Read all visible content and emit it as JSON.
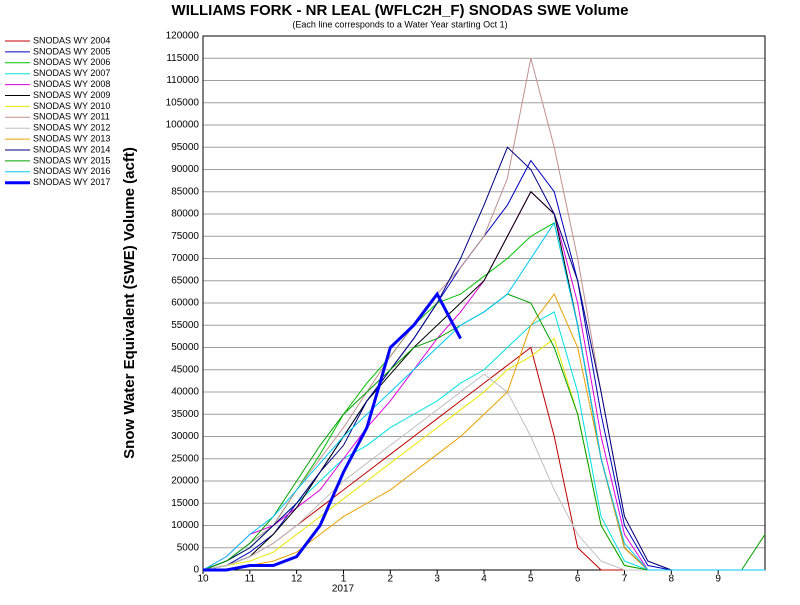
{
  "chart_data": {
    "type": "line",
    "title": "WILLIAMS FORK - NR LEAL (WFLC2H_F) SNODAS SWE Volume",
    "subtitle": "(Each line corresponds to a Water Year starting Oct 1)",
    "y_label": "Snow Water Equivalent (SWE) Volume (acft)",
    "year_label": "2017",
    "x": [
      0,
      0.5,
      1,
      1.5,
      2,
      2.5,
      3,
      3.5,
      4,
      4.5,
      5,
      5.5,
      6,
      6.5,
      7,
      7.5,
      8,
      8.5,
      9,
      9.5,
      10,
      10.5,
      11,
      11.5,
      12
    ],
    "xlim": [
      0,
      12
    ],
    "xticks": [
      {
        "value": 0,
        "label": "10"
      },
      {
        "value": 1,
        "label": "11"
      },
      {
        "value": 2,
        "label": "12"
      },
      {
        "value": 3,
        "label": "1"
      },
      {
        "value": 4,
        "label": "2"
      },
      {
        "value": 5,
        "label": "3"
      },
      {
        "value": 6,
        "label": "4"
      },
      {
        "value": 7,
        "label": "5"
      },
      {
        "value": 8,
        "label": "6"
      },
      {
        "value": 9,
        "label": "7"
      },
      {
        "value": 10,
        "label": "8"
      },
      {
        "value": 11,
        "label": "9"
      }
    ],
    "ylim": [
      0,
      120000
    ],
    "yticks": [
      0,
      5000,
      10000,
      15000,
      20000,
      25000,
      30000,
      35000,
      40000,
      45000,
      50000,
      55000,
      60000,
      65000,
      70000,
      75000,
      80000,
      85000,
      90000,
      95000,
      100000,
      105000,
      110000,
      115000,
      120000
    ],
    "grid": true,
    "series": [
      {
        "name": "SNODAS WY 2004",
        "color": "#c00000",
        "values": [
          0,
          1000,
          3000,
          6000,
          10000,
          14000,
          18000,
          22000,
          26000,
          30000,
          34000,
          38000,
          42000,
          46000,
          50000,
          30000,
          5000,
          0,
          0,
          0,
          0,
          0,
          0,
          0,
          0
        ]
      },
      {
        "name": "SNODAS WY 2005",
        "color": "#0000c0",
        "values": [
          0,
          1000,
          4000,
          8000,
          15000,
          22000,
          30000,
          38000,
          45000,
          52000,
          60000,
          68000,
          75000,
          82000,
          92000,
          85000,
          65000,
          35000,
          10000,
          1000,
          0,
          0,
          0,
          0,
          0
        ]
      },
      {
        "name": "SNODAS WY 2006",
        "color": "#00c000",
        "values": [
          0,
          2000,
          5000,
          10000,
          18000,
          26000,
          35000,
          42000,
          48000,
          55000,
          60000,
          62000,
          66000,
          70000,
          75000,
          78000,
          55000,
          25000,
          5000,
          0,
          0,
          0,
          0,
          0,
          0
        ]
      },
      {
        "name": "SNODAS WY 2007",
        "color": "#00e0e0",
        "values": [
          0,
          2000,
          6000,
          10000,
          15000,
          20000,
          25000,
          28000,
          32000,
          35000,
          38000,
          42000,
          45000,
          50000,
          55000,
          58000,
          40000,
          12000,
          2000,
          0,
          0,
          0,
          0,
          0,
          0
        ]
      },
      {
        "name": "SNODAS WY 2008",
        "color": "#e000e0",
        "values": [
          0,
          3000,
          8000,
          10000,
          14000,
          18000,
          25000,
          32000,
          38000,
          45000,
          52000,
          58000,
          65000,
          75000,
          85000,
          80000,
          60000,
          30000,
          8000,
          0,
          0,
          0,
          0,
          0,
          0
        ]
      },
      {
        "name": "SNODAS WY 2009",
        "color": "#000000",
        "values": [
          0,
          1000,
          3000,
          8000,
          14000,
          22000,
          30000,
          38000,
          44000,
          50000,
          55000,
          60000,
          65000,
          75000,
          85000,
          80000,
          55000,
          25000,
          5000,
          0,
          0,
          0,
          0,
          0,
          0
        ]
      },
      {
        "name": "SNODAS WY 2010",
        "color": "#e8e800",
        "values": [
          0,
          1000,
          2000,
          4000,
          8000,
          12000,
          16000,
          20000,
          24000,
          28000,
          32000,
          36000,
          40000,
          45000,
          48000,
          52000,
          35000,
          10000,
          1000,
          0,
          0,
          0,
          0,
          0,
          0
        ]
      },
      {
        "name": "SNODAS WY 2011",
        "color": "#c09090",
        "values": [
          0,
          2000,
          6000,
          10000,
          18000,
          25000,
          32000,
          40000,
          48000,
          55000,
          62000,
          68000,
          75000,
          88000,
          115000,
          95000,
          70000,
          40000,
          12000,
          2000,
          0,
          0,
          0,
          0,
          0
        ]
      },
      {
        "name": "SNODAS WY 2012",
        "color": "#c0c0c0",
        "values": [
          0,
          1000,
          3000,
          6000,
          10000,
          15000,
          20000,
          24000,
          28000,
          32000,
          36000,
          40000,
          44000,
          40000,
          30000,
          18000,
          8000,
          2000,
          0,
          0,
          0,
          0,
          0,
          0,
          0
        ]
      },
      {
        "name": "SNODAS WY 2013",
        "color": "#e8a000",
        "values": [
          0,
          0,
          1000,
          2000,
          4000,
          8000,
          12000,
          15000,
          18000,
          22000,
          26000,
          30000,
          35000,
          40000,
          55000,
          62000,
          50000,
          25000,
          5000,
          0,
          0,
          0,
          0,
          0,
          0
        ]
      },
      {
        "name": "SNODAS WY 2014",
        "color": "#000080",
        "values": [
          0,
          2000,
          5000,
          10000,
          15000,
          22000,
          28000,
          38000,
          45000,
          52000,
          60000,
          70000,
          82000,
          95000,
          90000,
          80000,
          65000,
          40000,
          12000,
          2000,
          0,
          0,
          0,
          0,
          0
        ]
      },
      {
        "name": "SNODAS WY 2015",
        "color": "#00a000",
        "values": [
          0,
          2000,
          6000,
          12000,
          20000,
          28000,
          35000,
          40000,
          45000,
          50000,
          52000,
          55000,
          58000,
          62000,
          60000,
          50000,
          35000,
          10000,
          1000,
          0,
          0,
          0,
          0,
          0,
          8000
        ]
      },
      {
        "name": "SNODAS WY 2016",
        "color": "#00c8ff",
        "values": [
          0,
          3000,
          8000,
          12000,
          18000,
          24000,
          30000,
          35000,
          40000,
          45000,
          50000,
          55000,
          58000,
          62000,
          70000,
          78000,
          55000,
          25000,
          6000,
          0,
          0,
          0,
          0,
          0,
          0
        ]
      },
      {
        "name": "SNODAS WY 2017",
        "color": "#0000ff",
        "width": 3,
        "values": [
          0,
          0,
          1000,
          1000,
          3000,
          10000,
          22000,
          32000,
          50000,
          55000,
          62000,
          52000,
          null,
          null,
          null,
          null,
          null,
          null,
          null,
          null,
          null,
          null,
          null,
          null,
          null
        ]
      }
    ]
  }
}
